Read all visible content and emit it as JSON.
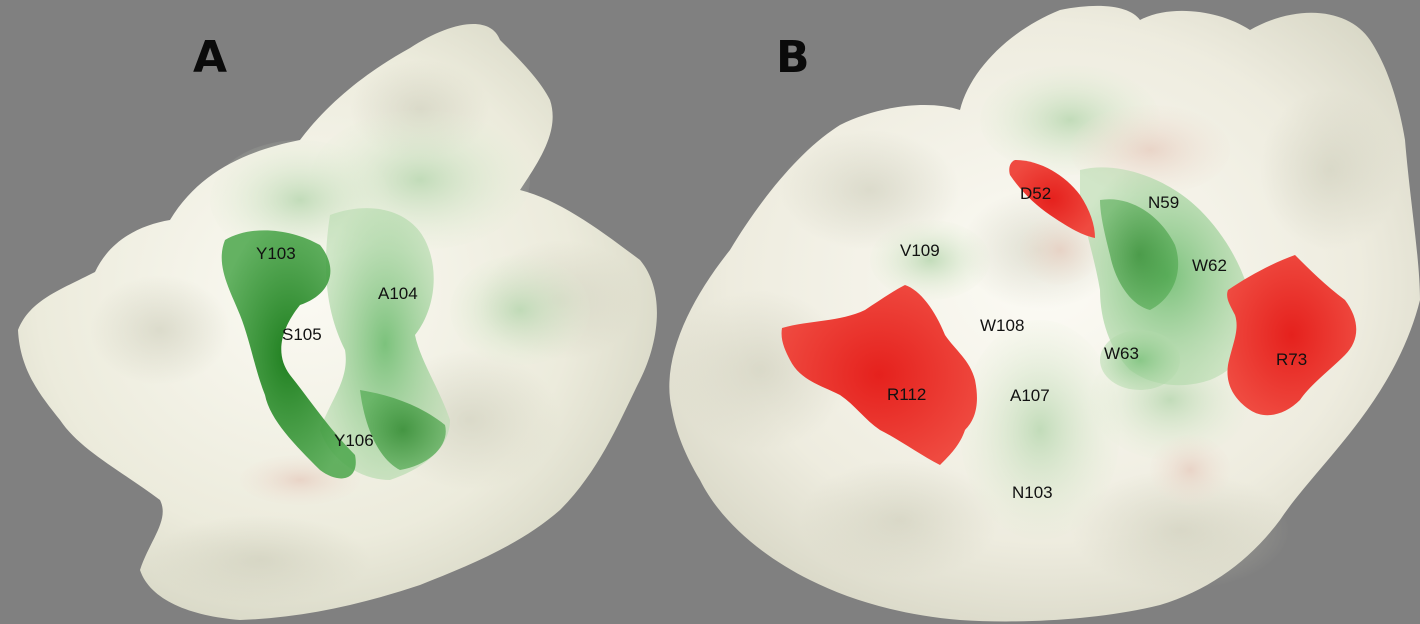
{
  "figure": {
    "background": "#808080",
    "surface_color": "#f3f1e6",
    "hydrophobic_color": "#3a9a3a",
    "charged_color": "#e0302a"
  },
  "panels": [
    {
      "letter": "A",
      "residues": [
        "Y103",
        "A104",
        "S105",
        "Y106"
      ]
    },
    {
      "letter": "B",
      "residues": [
        "D52",
        "N59",
        "V109",
        "W62",
        "W108",
        "W63",
        "R73",
        "R112",
        "A107",
        "N103"
      ]
    }
  ]
}
